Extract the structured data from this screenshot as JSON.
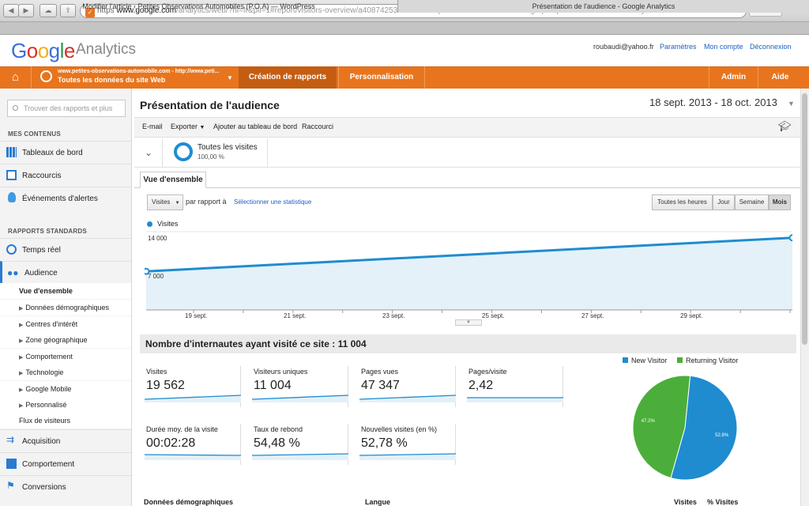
{
  "browser": {
    "url_https": "https",
    "url_host": "www.google.com",
    "url_path": "/analytics/web/?hl=fr&pli=1#report/visitors-overview/a40874253w70192703p72347923/%3Foverview-graphOptions.selected%3Danalytics.nthMonth/ — Présentation …",
    "reader_label": "Lecteur",
    "tabs": [
      {
        "label": "Modifier l'article ‹ Petites Observations Automobiles (P.O.A) — WordPress"
      },
      {
        "label": "Présentation de l'audience - Google Analytics"
      }
    ]
  },
  "header": {
    "logo_text": "Google",
    "logo_suffix": "Analytics",
    "user_email": "roubaudi@yahoo.fr",
    "links": [
      "Paramètres",
      "Mon compte",
      "Déconnexion"
    ]
  },
  "orange_bar": {
    "site_url": "www.petites-observations-automobile.com - http://www.peti...",
    "site_name": "Toutes les données du site Web",
    "nav_reports": "Création de rapports",
    "nav_custom": "Personnalisation",
    "nav_admin": "Admin",
    "nav_help": "Aide"
  },
  "sidebar": {
    "search_placeholder": "Trouver des rapports et plus",
    "section_my": "MES CONTENUS",
    "my_items": [
      "Tableaux de bord",
      "Raccourcis",
      "Événements d'alertes"
    ],
    "section_std": "RAPPORTS STANDARDS",
    "realtime": "Temps réel",
    "audience": "Audience",
    "audience_sub": [
      "Vue d'ensemble",
      "Données démographiques",
      "Centres d'intérêt",
      "Zone géographique",
      "Comportement",
      "Technologie",
      "Google Mobile",
      "Personnalisé",
      "Flux de visiteurs"
    ],
    "bottom_items": [
      "Acquisition",
      "Comportement",
      "Conversions"
    ]
  },
  "report": {
    "title": "Présentation de l'audience",
    "date_range": "18 sept. 2013 - 18 oct. 2013",
    "toolbar": [
      "E-mail",
      "Exporter",
      "Ajouter au tableau de bord",
      "Raccourci"
    ],
    "segment_name": "Toutes les visites",
    "segment_pct": "100,00 %",
    "tab": "Vue d'ensemble",
    "metric_select": "Visites",
    "vs_label": "par rapport à",
    "select_stat": "Sélectionner une statistique",
    "granularity": [
      "Toutes les heures",
      "Jour",
      "Semaine",
      "Mois"
    ],
    "summary_title": "Nombre d'internautes ayant visité ce site : 11 004",
    "metrics": [
      {
        "label": "Visites",
        "value": "19 562"
      },
      {
        "label": "Visiteurs uniques",
        "value": "11 004"
      },
      {
        "label": "Pages vues",
        "value": "47 347"
      },
      {
        "label": "Pages/visite",
        "value": "2,42"
      },
      {
        "label": "Durée moy. de la visite",
        "value": "00:02:28"
      },
      {
        "label": "Taux de rebond",
        "value": "54,48 %"
      },
      {
        "label": "Nouvelles visites (en %)",
        "value": "52,78 %"
      }
    ],
    "bottom_headers": [
      "Données démographiques",
      "Langue",
      "Visites",
      "% Visites"
    ]
  },
  "colors": {
    "accent": "#e8751d",
    "series": "#1f8cd0",
    "new_visitor": "#1f8cd0",
    "returning_visitor": "#4cae3a"
  },
  "chart_data": [
    {
      "type": "line",
      "series": [
        {
          "name": "Visites",
          "x": [
            "18 sept.",
            "18 oct."
          ],
          "values": [
            7800,
            14600
          ]
        }
      ],
      "y_ticks": [
        "14 000",
        "7 000"
      ],
      "x_ticks": [
        "19 sept.",
        "21 sept.",
        "23 sept.",
        "25 sept.",
        "27 sept.",
        "29 sept."
      ],
      "ylim": [
        0,
        16000
      ],
      "area": true
    },
    {
      "type": "pie",
      "categories": [
        "New Visitor",
        "Returning Visitor"
      ],
      "values": [
        52.8,
        47.2
      ],
      "labels": [
        "52.8%",
        "47.2%"
      ],
      "legend": "top"
    }
  ]
}
